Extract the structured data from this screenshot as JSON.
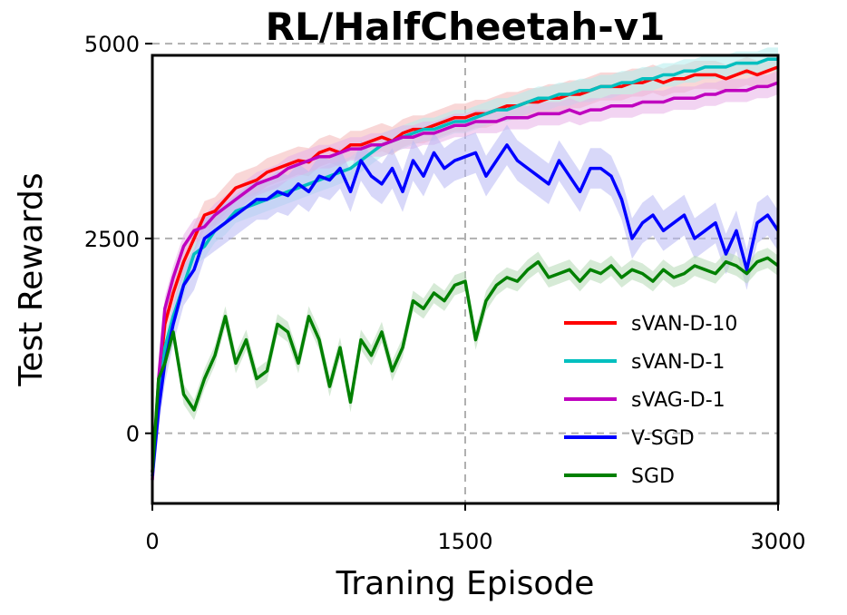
{
  "chart_data": {
    "type": "line",
    "title": "RL/HalfCheetah-v1",
    "xlabel": "Traning Episode",
    "ylabel": "Test Rewards",
    "xlim": [
      0,
      3000
    ],
    "ylim": [
      -900,
      4850
    ],
    "xticks": [
      0,
      1500,
      3000
    ],
    "xtick_labels": [
      "0",
      "1500",
      "3000"
    ],
    "yticks": [
      0,
      2500,
      5000
    ],
    "ytick_labels": [
      "0",
      "2500",
      "5000"
    ],
    "grid": true,
    "legend_position": "lower-right",
    "series": [
      {
        "name": "sVAN-D-10",
        "color": "#ff0000",
        "band_color": "#f4b6b6",
        "x": [
          0,
          30,
          60,
          100,
          150,
          200,
          250,
          300,
          350,
          400,
          450,
          500,
          550,
          600,
          650,
          700,
          750,
          800,
          850,
          900,
          950,
          1000,
          1050,
          1100,
          1150,
          1200,
          1250,
          1300,
          1350,
          1400,
          1450,
          1500,
          1550,
          1600,
          1650,
          1700,
          1750,
          1800,
          1850,
          1900,
          1950,
          2000,
          2050,
          2100,
          2150,
          2200,
          2250,
          2300,
          2350,
          2400,
          2450,
          2500,
          2550,
          2600,
          2650,
          2700,
          2750,
          2800,
          2850,
          2900,
          2950,
          3000
        ],
        "y": [
          -500,
          600,
          1400,
          1800,
          2200,
          2500,
          2800,
          2850,
          3000,
          3150,
          3200,
          3250,
          3350,
          3400,
          3450,
          3500,
          3480,
          3600,
          3650,
          3600,
          3700,
          3700,
          3750,
          3800,
          3750,
          3850,
          3900,
          3900,
          3950,
          4000,
          4050,
          4050,
          4100,
          4100,
          4150,
          4200,
          4200,
          4250,
          4250,
          4300,
          4300,
          4350,
          4350,
          4400,
          4450,
          4450,
          4450,
          4500,
          4500,
          4550,
          4500,
          4550,
          4550,
          4600,
          4600,
          4600,
          4550,
          4600,
          4650,
          4600,
          4650,
          4700
        ],
        "band": 180
      },
      {
        "name": "sVAN-D-1",
        "color": "#00bfbf",
        "band_color": "#b0ecec",
        "x": [
          0,
          30,
          60,
          100,
          150,
          200,
          250,
          300,
          350,
          400,
          450,
          500,
          550,
          600,
          650,
          700,
          750,
          800,
          850,
          900,
          950,
          1000,
          1050,
          1100,
          1150,
          1200,
          1250,
          1300,
          1350,
          1400,
          1450,
          1500,
          1550,
          1600,
          1650,
          1700,
          1750,
          1800,
          1850,
          1900,
          1950,
          2000,
          2050,
          2100,
          2150,
          2200,
          2250,
          2300,
          2350,
          2400,
          2450,
          2500,
          2550,
          2600,
          2650,
          2700,
          2750,
          2800,
          2850,
          2900,
          2950,
          3000
        ],
        "y": [
          -500,
          400,
          1100,
          1500,
          1900,
          2300,
          2400,
          2600,
          2700,
          2850,
          2900,
          2950,
          3000,
          3050,
          3100,
          3150,
          3200,
          3250,
          3300,
          3350,
          3400,
          3500,
          3600,
          3700,
          3750,
          3800,
          3850,
          3900,
          3900,
          3950,
          4000,
          4000,
          4050,
          4100,
          4150,
          4150,
          4200,
          4250,
          4300,
          4300,
          4350,
          4350,
          4400,
          4400,
          4450,
          4450,
          4500,
          4500,
          4550,
          4550,
          4600,
          4600,
          4650,
          4650,
          4700,
          4700,
          4700,
          4750,
          4750,
          4750,
          4800,
          4800
        ],
        "band": 150
      },
      {
        "name": "sVAG-D-1",
        "color": "#bf00bf",
        "band_color": "#e7b0e7",
        "x": [
          0,
          30,
          60,
          100,
          150,
          200,
          250,
          300,
          350,
          400,
          450,
          500,
          550,
          600,
          650,
          700,
          750,
          800,
          850,
          900,
          950,
          1000,
          1050,
          1100,
          1150,
          1200,
          1250,
          1300,
          1350,
          1400,
          1450,
          1500,
          1550,
          1600,
          1650,
          1700,
          1750,
          1800,
          1850,
          1900,
          1950,
          2000,
          2050,
          2100,
          2150,
          2200,
          2250,
          2300,
          2350,
          2400,
          2450,
          2500,
          2550,
          2600,
          2650,
          2700,
          2750,
          2800,
          2850,
          2900,
          2950,
          3000
        ],
        "y": [
          -600,
          700,
          1600,
          2000,
          2400,
          2600,
          2650,
          2800,
          2900,
          3000,
          3100,
          3200,
          3250,
          3300,
          3400,
          3450,
          3500,
          3550,
          3550,
          3600,
          3650,
          3650,
          3700,
          3700,
          3750,
          3800,
          3800,
          3850,
          3850,
          3900,
          3950,
          3950,
          4000,
          4000,
          4000,
          4050,
          4050,
          4050,
          4100,
          4100,
          4100,
          4150,
          4100,
          4150,
          4150,
          4200,
          4200,
          4200,
          4250,
          4250,
          4250,
          4300,
          4300,
          4300,
          4350,
          4350,
          4400,
          4400,
          4400,
          4450,
          4450,
          4500
        ],
        "band": 150
      },
      {
        "name": "V-SGD",
        "color": "#0000ff",
        "band_color": "#b8b8f4",
        "x": [
          0,
          30,
          60,
          100,
          150,
          200,
          250,
          300,
          350,
          400,
          450,
          500,
          550,
          600,
          650,
          700,
          750,
          800,
          850,
          900,
          950,
          1000,
          1050,
          1100,
          1150,
          1200,
          1250,
          1300,
          1350,
          1400,
          1450,
          1500,
          1550,
          1600,
          1650,
          1700,
          1750,
          1800,
          1850,
          1900,
          1950,
          2000,
          2050,
          2100,
          2150,
          2200,
          2250,
          2300,
          2350,
          2400,
          2450,
          2500,
          2550,
          2600,
          2650,
          2700,
          2750,
          2800,
          2850,
          2900,
          2950,
          3000
        ],
        "y": [
          -550,
          300,
          900,
          1400,
          1900,
          2100,
          2500,
          2600,
          2700,
          2800,
          2900,
          3000,
          3000,
          3100,
          3050,
          3200,
          3100,
          3300,
          3250,
          3400,
          3100,
          3500,
          3300,
          3200,
          3400,
          3100,
          3500,
          3300,
          3600,
          3400,
          3500,
          3550,
          3600,
          3300,
          3500,
          3700,
          3500,
          3400,
          3300,
          3200,
          3500,
          3300,
          3100,
          3400,
          3400,
          3300,
          3000,
          2500,
          2700,
          2800,
          2600,
          2700,
          2800,
          2500,
          2600,
          2700,
          2300,
          2600,
          2100,
          2700,
          2800,
          2600
        ],
        "band": 260
      },
      {
        "name": "SGD",
        "color": "#008000",
        "band_color": "#b5d9b5",
        "x": [
          0,
          30,
          60,
          100,
          150,
          200,
          250,
          300,
          350,
          400,
          450,
          500,
          550,
          600,
          650,
          700,
          750,
          800,
          850,
          900,
          950,
          1000,
          1050,
          1100,
          1150,
          1200,
          1250,
          1300,
          1350,
          1400,
          1450,
          1500,
          1550,
          1600,
          1650,
          1700,
          1750,
          1800,
          1850,
          1900,
          1950,
          2000,
          2050,
          2100,
          2150,
          2200,
          2250,
          2300,
          2350,
          2400,
          2450,
          2500,
          2550,
          2600,
          2650,
          2700,
          2750,
          2800,
          2850,
          2900,
          2950,
          3000
        ],
        "y": [
          -500,
          700,
          900,
          1300,
          500,
          300,
          700,
          1000,
          1500,
          900,
          1200,
          700,
          800,
          1400,
          1300,
          900,
          1500,
          1200,
          600,
          1100,
          400,
          1200,
          1000,
          1300,
          800,
          1100,
          1700,
          1600,
          1800,
          1700,
          1900,
          1950,
          1200,
          1700,
          1900,
          2000,
          1950,
          2100,
          2200,
          2000,
          2050,
          2100,
          1950,
          2100,
          2050,
          2150,
          2000,
          2100,
          2050,
          1950,
          2100,
          2000,
          2050,
          2150,
          2100,
          2050,
          2200,
          2150,
          2050,
          2200,
          2250,
          2150
        ],
        "band": 130
      }
    ]
  }
}
